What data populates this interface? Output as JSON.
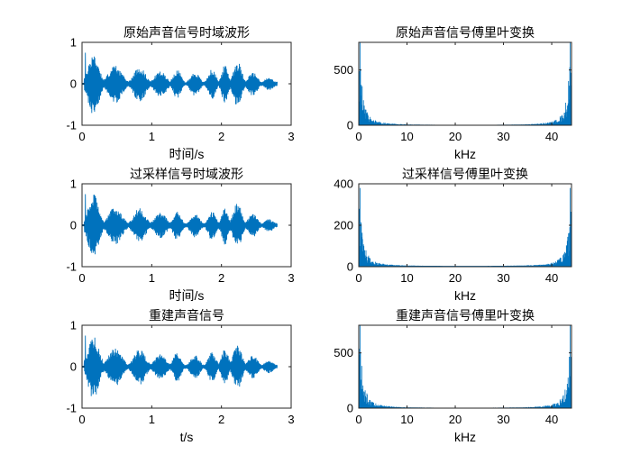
{
  "colors": {
    "series": "#0072BD",
    "axes": "#262626",
    "background": "#ffffff"
  },
  "chart_data": [
    {
      "type": "line",
      "title": "原始声音信号时域波形",
      "xlabel": "时间/s",
      "ylabel": "",
      "xlim": [
        0,
        3
      ],
      "ylim": [
        -1,
        1
      ],
      "xticks": [
        0,
        1,
        2,
        3
      ],
      "yticks": [
        -1,
        0,
        1
      ],
      "grid": false,
      "series": [
        {
          "kind": "waveform",
          "duration": 2.8,
          "peak": 0.75
        }
      ]
    },
    {
      "type": "line",
      "title": "原始声音信号傅里叶变换",
      "xlabel": "kHz",
      "ylabel": "",
      "xlim": [
        0,
        44.1
      ],
      "ylim": [
        0,
        750
      ],
      "xticks": [
        0,
        10,
        20,
        30,
        40
      ],
      "yticks": [
        0,
        500
      ],
      "grid": false,
      "series": [
        {
          "kind": "spectrum",
          "peak": 750
        }
      ]
    },
    {
      "type": "line",
      "title": "过采样信号时域波形",
      "xlabel": "时间/s",
      "ylabel": "",
      "xlim": [
        0,
        3
      ],
      "ylim": [
        -1,
        1
      ],
      "xticks": [
        0,
        1,
        2,
        3
      ],
      "yticks": [
        -1,
        0,
        1
      ],
      "grid": false,
      "series": [
        {
          "kind": "waveform",
          "duration": 2.8,
          "peak": 0.75
        }
      ]
    },
    {
      "type": "line",
      "title": "过采样信号傅里叶变换",
      "xlabel": "kHz",
      "ylabel": "",
      "xlim": [
        0,
        44.1
      ],
      "ylim": [
        0,
        400
      ],
      "xticks": [
        0,
        10,
        20,
        30,
        40
      ],
      "yticks": [
        0,
        200,
        400
      ],
      "grid": false,
      "series": [
        {
          "kind": "spectrum",
          "peak": 380
        }
      ]
    },
    {
      "type": "line",
      "title": "重建声音信号",
      "xlabel": "t/s",
      "ylabel": "",
      "xlim": [
        0,
        3
      ],
      "ylim": [
        -1,
        1
      ],
      "xticks": [
        0,
        1,
        2,
        3
      ],
      "yticks": [
        -1,
        0,
        1
      ],
      "grid": false,
      "series": [
        {
          "kind": "waveform",
          "duration": 2.8,
          "peak": 0.75
        }
      ]
    },
    {
      "type": "line",
      "title": "重建声音信号傅里叶变换",
      "xlabel": "kHz",
      "ylabel": "",
      "xlim": [
        0,
        44.1
      ],
      "ylim": [
        0,
        750
      ],
      "xticks": [
        0,
        10,
        20,
        30,
        40
      ],
      "yticks": [
        0,
        500
      ],
      "grid": false,
      "series": [
        {
          "kind": "spectrum",
          "peak": 750
        }
      ]
    }
  ]
}
